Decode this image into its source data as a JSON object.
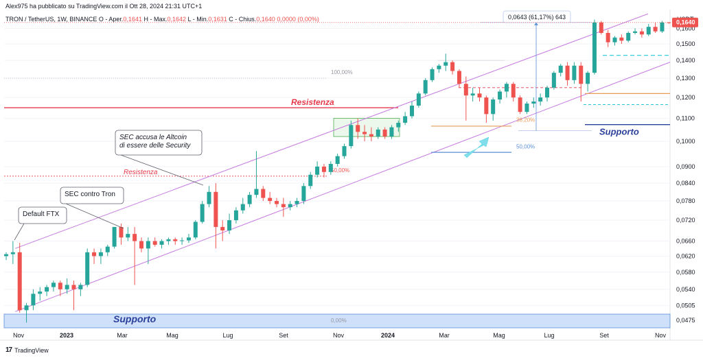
{
  "header": {
    "publisher": "Alex975 ha pubblicato su TradingView.com il Ott 28, 2024 21:31 UTC+1",
    "symbol": "TRON / TetherUS, 1W, BINANCE",
    "ohlc": [
      {
        "label": "O - Aper.",
        "value": "0,1641"
      },
      {
        "label": "H - Max.",
        "value": "0,1642"
      },
      {
        "label": "L - Min.",
        "value": "0,1631"
      },
      {
        "label": "C - Chius.",
        "value": "0,1640"
      },
      {
        "label": "",
        "value": "0,0000 (0,00%)"
      }
    ],
    "currency": "USDT"
  },
  "footer": {
    "brand": "TradingView"
  },
  "colors": {
    "up": "#26a69a",
    "down": "#ef5350",
    "channel": "#c77ae0",
    "resistance": "#e5394a",
    "support": "#2a3f9a",
    "fib": "#e79c57",
    "fib_blue": "#5b8fd6",
    "last_price_bg": "#ef5350"
  },
  "chart_data": {
    "type": "candlestick",
    "scale": "log",
    "ylim": [
      0.046,
      0.173
    ],
    "y_ticks": [
      "0,1600",
      "0,1500",
      "0,1400",
      "0,1300",
      "0,1200",
      "0,1100",
      "0,1000",
      "0,0900",
      "0,0840",
      "0,0780",
      "0,0720",
      "0,0660",
      "0,0620",
      "0,0580",
      "0,0540",
      "0,0505",
      "0,0475"
    ],
    "x_labels": [
      "Nov",
      "2023",
      "Mar",
      "Mag",
      "Lug",
      "Set",
      "Nov",
      "2024",
      "Mar",
      "Mag",
      "Lug",
      "Set",
      "Nov"
    ],
    "last_price": "0,1640",
    "measure_label": "0,0643 (61,17%) 643",
    "candles": [
      [
        0.062,
        0.063,
        0.061,
        0.0625
      ],
      [
        0.0625,
        0.066,
        0.06,
        0.063
      ],
      [
        0.063,
        0.0655,
        0.049,
        0.0495
      ],
      [
        0.0495,
        0.051,
        0.047,
        0.0505
      ],
      [
        0.0505,
        0.054,
        0.0495,
        0.053
      ],
      [
        0.053,
        0.0545,
        0.0515,
        0.0535
      ],
      [
        0.0535,
        0.055,
        0.0525,
        0.0545
      ],
      [
        0.0545,
        0.056,
        0.0535,
        0.0555
      ],
      [
        0.0555,
        0.056,
        0.0525,
        0.054
      ],
      [
        0.054,
        0.0565,
        0.053,
        0.055
      ],
      [
        0.055,
        0.056,
        0.0495,
        0.054
      ],
      [
        0.054,
        0.0555,
        0.0525,
        0.055
      ],
      [
        0.055,
        0.064,
        0.0545,
        0.063
      ],
      [
        0.063,
        0.064,
        0.06,
        0.062
      ],
      [
        0.062,
        0.064,
        0.06,
        0.063
      ],
      [
        0.063,
        0.065,
        0.062,
        0.0645
      ],
      [
        0.0645,
        0.07,
        0.064,
        0.07
      ],
      [
        0.07,
        0.071,
        0.065,
        0.067
      ],
      [
        0.067,
        0.07,
        0.066,
        0.068
      ],
      [
        0.068,
        0.07,
        0.055,
        0.066
      ],
      [
        0.066,
        0.067,
        0.063,
        0.064
      ],
      [
        0.064,
        0.067,
        0.06,
        0.066
      ],
      [
        0.066,
        0.067,
        0.0645,
        0.065
      ],
      [
        0.065,
        0.0665,
        0.064,
        0.066
      ],
      [
        0.066,
        0.067,
        0.065,
        0.0665
      ],
      [
        0.0665,
        0.067,
        0.065,
        0.066
      ],
      [
        0.066,
        0.067,
        0.065,
        0.0662
      ],
      [
        0.0662,
        0.068,
        0.0655,
        0.067
      ],
      [
        0.067,
        0.072,
        0.0665,
        0.0715
      ],
      [
        0.0715,
        0.078,
        0.071,
        0.077
      ],
      [
        0.077,
        0.083,
        0.076,
        0.081
      ],
      [
        0.081,
        0.084,
        0.064,
        0.07
      ],
      [
        0.07,
        0.072,
        0.066,
        0.069
      ],
      [
        0.069,
        0.074,
        0.068,
        0.072
      ],
      [
        0.072,
        0.076,
        0.071,
        0.075
      ],
      [
        0.075,
        0.079,
        0.074,
        0.077
      ],
      [
        0.077,
        0.081,
        0.076,
        0.08
      ],
      [
        0.08,
        0.096,
        0.079,
        0.082
      ],
      [
        0.082,
        0.083,
        0.078,
        0.079
      ],
      [
        0.079,
        0.081,
        0.077,
        0.078
      ],
      [
        0.078,
        0.079,
        0.076,
        0.077
      ],
      [
        0.077,
        0.079,
        0.073,
        0.076
      ],
      [
        0.076,
        0.078,
        0.075,
        0.077
      ],
      [
        0.077,
        0.079,
        0.076,
        0.078
      ],
      [
        0.078,
        0.084,
        0.077,
        0.083
      ],
      [
        0.083,
        0.088,
        0.082,
        0.087
      ],
      [
        0.087,
        0.092,
        0.086,
        0.09
      ],
      [
        0.09,
        0.091,
        0.086,
        0.088
      ],
      [
        0.088,
        0.092,
        0.087,
        0.091
      ],
      [
        0.091,
        0.095,
        0.09,
        0.094
      ],
      [
        0.094,
        0.099,
        0.093,
        0.098
      ],
      [
        0.098,
        0.109,
        0.097,
        0.107
      ],
      [
        0.107,
        0.11,
        0.101,
        0.104
      ],
      [
        0.104,
        0.107,
        0.1,
        0.103
      ],
      [
        0.103,
        0.106,
        0.1,
        0.102
      ],
      [
        0.102,
        0.106,
        0.101,
        0.105
      ],
      [
        0.105,
        0.106,
        0.101,
        0.102
      ],
      [
        0.102,
        0.107,
        0.101,
        0.106
      ],
      [
        0.106,
        0.109,
        0.104,
        0.108
      ],
      [
        0.108,
        0.113,
        0.107,
        0.111
      ],
      [
        0.111,
        0.118,
        0.11,
        0.116
      ],
      [
        0.116,
        0.123,
        0.115,
        0.122
      ],
      [
        0.122,
        0.13,
        0.121,
        0.129
      ],
      [
        0.129,
        0.136,
        0.128,
        0.135
      ],
      [
        0.135,
        0.138,
        0.133,
        0.137
      ],
      [
        0.137,
        0.144,
        0.134,
        0.139
      ],
      [
        0.139,
        0.14,
        0.132,
        0.134
      ],
      [
        0.134,
        0.135,
        0.125,
        0.127
      ],
      [
        0.127,
        0.131,
        0.109,
        0.121
      ],
      [
        0.121,
        0.125,
        0.118,
        0.122
      ],
      [
        0.122,
        0.125,
        0.118,
        0.12
      ],
      [
        0.12,
        0.121,
        0.108,
        0.112
      ],
      [
        0.112,
        0.12,
        0.109,
        0.119
      ],
      [
        0.119,
        0.124,
        0.117,
        0.123
      ],
      [
        0.123,
        0.128,
        0.12,
        0.127
      ],
      [
        0.127,
        0.128,
        0.118,
        0.12
      ],
      [
        0.12,
        0.121,
        0.112,
        0.113
      ],
      [
        0.113,
        0.118,
        0.112,
        0.117
      ],
      [
        0.117,
        0.12,
        0.115,
        0.118
      ],
      [
        0.118,
        0.122,
        0.116,
        0.12
      ],
      [
        0.12,
        0.126,
        0.118,
        0.125
      ],
      [
        0.125,
        0.134,
        0.124,
        0.133
      ],
      [
        0.133,
        0.138,
        0.131,
        0.137
      ],
      [
        0.137,
        0.139,
        0.126,
        0.129
      ],
      [
        0.129,
        0.139,
        0.127,
        0.137
      ],
      [
        0.137,
        0.139,
        0.118,
        0.127
      ],
      [
        0.127,
        0.134,
        0.123,
        0.133
      ],
      [
        0.133,
        0.166,
        0.132,
        0.164
      ],
      [
        0.164,
        0.165,
        0.156,
        0.157
      ],
      [
        0.157,
        0.159,
        0.148,
        0.151
      ],
      [
        0.151,
        0.155,
        0.149,
        0.154
      ],
      [
        0.154,
        0.156,
        0.15,
        0.152
      ],
      [
        0.152,
        0.158,
        0.151,
        0.157
      ],
      [
        0.157,
        0.16,
        0.156,
        0.158
      ],
      [
        0.158,
        0.16,
        0.154,
        0.156
      ],
      [
        0.156,
        0.163,
        0.155,
        0.161
      ],
      [
        0.161,
        0.164,
        0.157,
        0.158
      ],
      [
        0.158,
        0.165,
        0.157,
        0.164
      ],
      [
        0.1641,
        0.1642,
        0.1631,
        0.164
      ]
    ],
    "annotations": [
      {
        "text": "Default FTX"
      },
      {
        "text": "SEC contro Tron"
      },
      {
        "text": "SEC accusa le Altcoin\ndi essere delle Security"
      }
    ],
    "labels": {
      "resistenza_big": "Resistenza",
      "resistenza_small": "Resistenza",
      "supporto_left": "Supporto",
      "supporto_right": "Supporto",
      "fib_100": "100,00%",
      "fib_50_left": "50,00%",
      "fib_0": "0,00%",
      "fib_382": "38,20%",
      "fib_50_right": "50,00%"
    }
  }
}
